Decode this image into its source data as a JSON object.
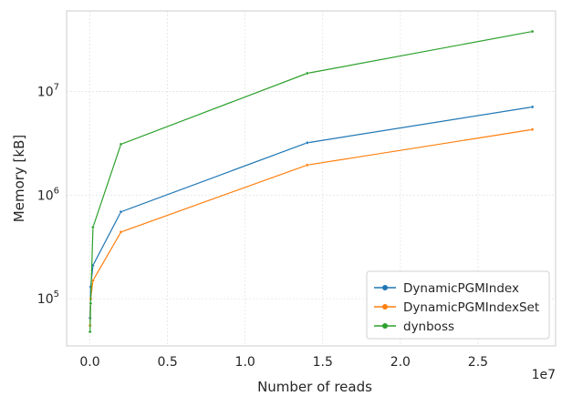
{
  "chart_data": {
    "type": "line",
    "title": "",
    "xlabel": "Number of reads",
    "ylabel": "Memory [kB]",
    "x_offset_label": "1e7",
    "x_scale": "linear",
    "y_scale": "log",
    "xlim": [
      -1500000,
      30000000
    ],
    "ylim": [
      35000,
      60000000
    ],
    "grid": true,
    "legend_position": "lower-right",
    "x_ticks": [
      0,
      5000000,
      10000000,
      15000000,
      20000000,
      25000000
    ],
    "x_tick_labels": [
      "0.0",
      "0.5",
      "1.0",
      "1.5",
      "2.0",
      "2.5"
    ],
    "y_ticks": [
      100000,
      1000000,
      10000000
    ],
    "y_tick_labels": [
      "10^5",
      "10^6",
      "10^7"
    ],
    "x": [
      10000,
      50000,
      200000,
      2000000,
      14000000,
      28500000
    ],
    "series": [
      {
        "name": "DynamicPGMIndex",
        "color": "#1f77b4",
        "values": [
          65000,
          130000,
          210000,
          690000,
          3200000,
          7100000
        ]
      },
      {
        "name": "DynamicPGMIndexSet",
        "color": "#ff7f0e",
        "values": [
          55000,
          100000,
          150000,
          440000,
          1950000,
          4300000
        ]
      },
      {
        "name": "dynboss",
        "color": "#2ca02c",
        "values": [
          48000,
          90000,
          490000,
          3100000,
          15000000,
          38000000
        ]
      }
    ]
  }
}
